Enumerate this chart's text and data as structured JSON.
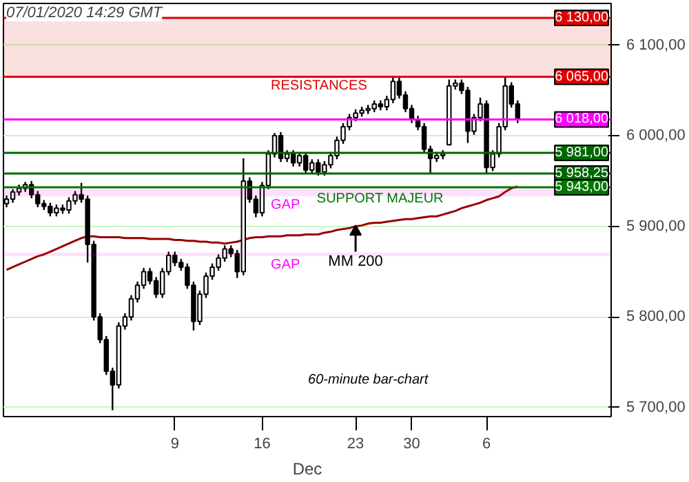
{
  "chart_data": {
    "type": "candlestick",
    "title": "07/01/2020 14:29 GMT",
    "xlabel": "Dec",
    "color": "#000000",
    "categories": [
      null,
      null,
      null,
      null,
      null,
      null,
      null,
      null,
      null,
      null,
      null,
      null,
      null,
      null,
      null,
      null,
      null,
      null,
      null,
      null,
      null,
      null,
      null,
      null,
      null,
      null,
      null,
      "9",
      null,
      null,
      null,
      null,
      null,
      null,
      null,
      null,
      null,
      null,
      null,
      null,
      null,
      "16",
      null,
      null,
      null,
      null,
      null,
      null,
      null,
      null,
      null,
      null,
      null,
      null,
      null,
      null,
      "23",
      null,
      null,
      null,
      null,
      null,
      null,
      null,
      null,
      "30",
      null,
      null,
      null,
      null,
      null,
      null,
      null,
      null,
      null,
      null,
      null,
      "6",
      null,
      null,
      null,
      null,
      null
    ],
    "ohlc": [
      [
        5925,
        5934,
        5921,
        5930
      ],
      [
        5930,
        5941,
        5926,
        5938
      ],
      [
        5938,
        5946,
        5934,
        5942
      ],
      [
        5942,
        5949,
        5938,
        5946
      ],
      [
        5946,
        5950,
        5931,
        5935
      ],
      [
        5935,
        5939,
        5921,
        5925
      ],
      [
        5925,
        5929,
        5918,
        5922
      ],
      [
        5922,
        5926,
        5911,
        5915
      ],
      [
        5915,
        5924,
        5911,
        5920
      ],
      [
        5920,
        5924,
        5914,
        5918
      ],
      [
        5918,
        5932,
        5914,
        5928
      ],
      [
        5928,
        5939,
        5924,
        5935
      ],
      [
        5935,
        5948,
        5926,
        5930
      ],
      [
        5930,
        5934,
        5860,
        5880
      ],
      [
        5880,
        5884,
        5796,
        5800
      ],
      [
        5800,
        5804,
        5771,
        5775
      ],
      [
        5775,
        5779,
        5736,
        5740
      ],
      [
        5740,
        5744,
        5697,
        5725
      ],
      [
        5725,
        5794,
        5721,
        5790
      ],
      [
        5790,
        5804,
        5786,
        5800
      ],
      [
        5800,
        5824,
        5796,
        5820
      ],
      [
        5820,
        5839,
        5816,
        5835
      ],
      [
        5835,
        5854,
        5831,
        5850
      ],
      [
        5850,
        5854,
        5836,
        5840
      ],
      [
        5840,
        5844,
        5821,
        5825
      ],
      [
        5825,
        5854,
        5821,
        5850
      ],
      [
        5850,
        5872,
        5846,
        5868
      ],
      [
        5868,
        5872,
        5856,
        5860
      ],
      [
        5860,
        5864,
        5851,
        5855
      ],
      [
        5855,
        5859,
        5831,
        5835
      ],
      [
        5835,
        5839,
        5785,
        5795
      ],
      [
        5795,
        5829,
        5791,
        5825
      ],
      [
        5825,
        5849,
        5821,
        5845
      ],
      [
        5845,
        5859,
        5841,
        5855
      ],
      [
        5855,
        5869,
        5851,
        5865
      ],
      [
        5865,
        5879,
        5861,
        5875
      ],
      [
        5875,
        5879,
        5866,
        5870
      ],
      [
        5870,
        5874,
        5843,
        5850
      ],
      [
        5850,
        5975,
        5846,
        5950
      ],
      [
        5950,
        5954,
        5926,
        5930
      ],
      [
        5930,
        5934,
        5910,
        5915
      ],
      [
        5915,
        5949,
        5911,
        5945
      ],
      [
        5945,
        5984,
        5941,
        5980
      ],
      [
        5980,
        6003,
        5976,
        6000
      ],
      [
        6000,
        6004,
        5971,
        5975
      ],
      [
        5975,
        5984,
        5971,
        5980
      ],
      [
        5980,
        5984,
        5966,
        5970
      ],
      [
        5970,
        5982,
        5966,
        5978
      ],
      [
        5978,
        5982,
        5958,
        5962
      ],
      [
        5962,
        5974,
        5958,
        5970
      ],
      [
        5970,
        5974,
        5956,
        5960
      ],
      [
        5960,
        5972,
        5956,
        5968
      ],
      [
        5968,
        5982,
        5964,
        5978
      ],
      [
        5978,
        5999,
        5974,
        5995
      ],
      [
        5995,
        6014,
        5991,
        6010
      ],
      [
        6010,
        6024,
        6006,
        6020
      ],
      [
        6020,
        6029,
        6016,
        6025
      ],
      [
        6025,
        6032,
        6021,
        6028
      ],
      [
        6028,
        6034,
        6024,
        6030
      ],
      [
        6030,
        6039,
        6026,
        6035
      ],
      [
        6035,
        6039,
        6028,
        6032
      ],
      [
        6032,
        6044,
        6028,
        6040
      ],
      [
        6040,
        6064,
        6036,
        6060
      ],
      [
        6060,
        6064,
        6041,
        6045
      ],
      [
        6045,
        6049,
        6026,
        6030
      ],
      [
        6030,
        6034,
        6014,
        6018
      ],
      [
        6018,
        6022,
        6006,
        6010
      ],
      [
        6010,
        6014,
        5981,
        5985
      ],
      [
        5985,
        5989,
        5959,
        5975
      ],
      [
        5975,
        5982,
        5971,
        5978
      ],
      [
        5978,
        5984,
        5974,
        5980
      ],
      [
        5990,
        6062,
        5990,
        6055
      ],
      [
        6055,
        6062,
        6051,
        6058
      ],
      [
        6058,
        6062,
        6046,
        6050
      ],
      [
        6050,
        6054,
        5992,
        6005
      ],
      [
        6005,
        6024,
        6001,
        6020
      ],
      [
        6020,
        6042,
        6016,
        6035
      ],
      [
        6035,
        6039,
        5958,
        5965
      ],
      [
        5965,
        5984,
        5961,
        5980
      ],
      [
        5980,
        6014,
        5976,
        6010
      ],
      [
        6010,
        6065,
        6006,
        6055
      ],
      [
        6055,
        6059,
        6031,
        6035
      ],
      [
        6035,
        6039,
        6014,
        6018
      ]
    ],
    "series": [
      {
        "type": "line",
        "color": "#990000",
        "values": [
          5852,
          5855,
          5858,
          5861,
          5864,
          5867,
          5869,
          5872,
          5875,
          5878,
          5881,
          5884,
          5887,
          5889,
          5889,
          5888,
          5888,
          5888,
          5888,
          5887,
          5887,
          5887,
          5887,
          5886,
          5886,
          5886,
          5886,
          5885,
          5885,
          5884,
          5884,
          5883,
          5883,
          5882,
          5882,
          5881,
          5882,
          5883,
          5885,
          5887,
          5888,
          5888,
          5889,
          5889,
          5889,
          5890,
          5890,
          5890,
          5891,
          5891,
          5891,
          5893,
          5894,
          5896,
          5897,
          5898,
          5900,
          5901,
          5903,
          5904,
          5904,
          5905,
          5906,
          5907,
          5908,
          5908,
          5909,
          5910,
          5911,
          5911,
          5913,
          5915,
          5917,
          5920,
          5922,
          5924,
          5926,
          5929,
          5931,
          5933,
          5938,
          5942,
          5944
        ]
      }
    ],
    "ylim": [
      5690,
      6146
    ],
    "yticks": [
      {
        "value": 5700,
        "label": "5 700,00"
      },
      {
        "value": 5800,
        "label": "5 800,00"
      },
      {
        "value": 5900,
        "label": "5 900,00"
      },
      {
        "value": 6000,
        "label": "6 000,00"
      },
      {
        "value": 6100,
        "label": "6 100,00"
      }
    ],
    "grid": "y",
    "ref_lines": [
      {
        "axis": "y",
        "value": 6130,
        "label": "6 130,00",
        "color": "#e00000"
      },
      {
        "axis": "y",
        "value": 6065,
        "label": "6 065,00",
        "color": "#e00000"
      },
      {
        "axis": "y",
        "value": 6018,
        "label": "6 018,00",
        "color": "#ff00ff"
      },
      {
        "axis": "y",
        "value": 5981,
        "label": "5 981,00",
        "color": "#006600"
      },
      {
        "axis": "y",
        "value": 5958.25,
        "label": "5 958,25",
        "color": "#006600"
      },
      {
        "axis": "y",
        "value": 5943,
        "label": "5 943,00",
        "color": "#007700"
      }
    ],
    "bands": [
      {
        "axis": "y",
        "from": 6065,
        "to": 6130,
        "label": "RESISTANCES",
        "color": "#e00000"
      },
      {
        "axis": "y",
        "from": 5933,
        "to": 5941,
        "label": "GAP",
        "color": "#ff00ff"
      },
      {
        "axis": "y",
        "from": 5867,
        "to": 5871,
        "label": "GAP",
        "color": "#ff00ff"
      }
    ],
    "annotations": [
      {
        "text": "SUPPORT MAJEUR",
        "y": 5930
      },
      "MM 200",
      "60-minute bar-chart"
    ]
  }
}
